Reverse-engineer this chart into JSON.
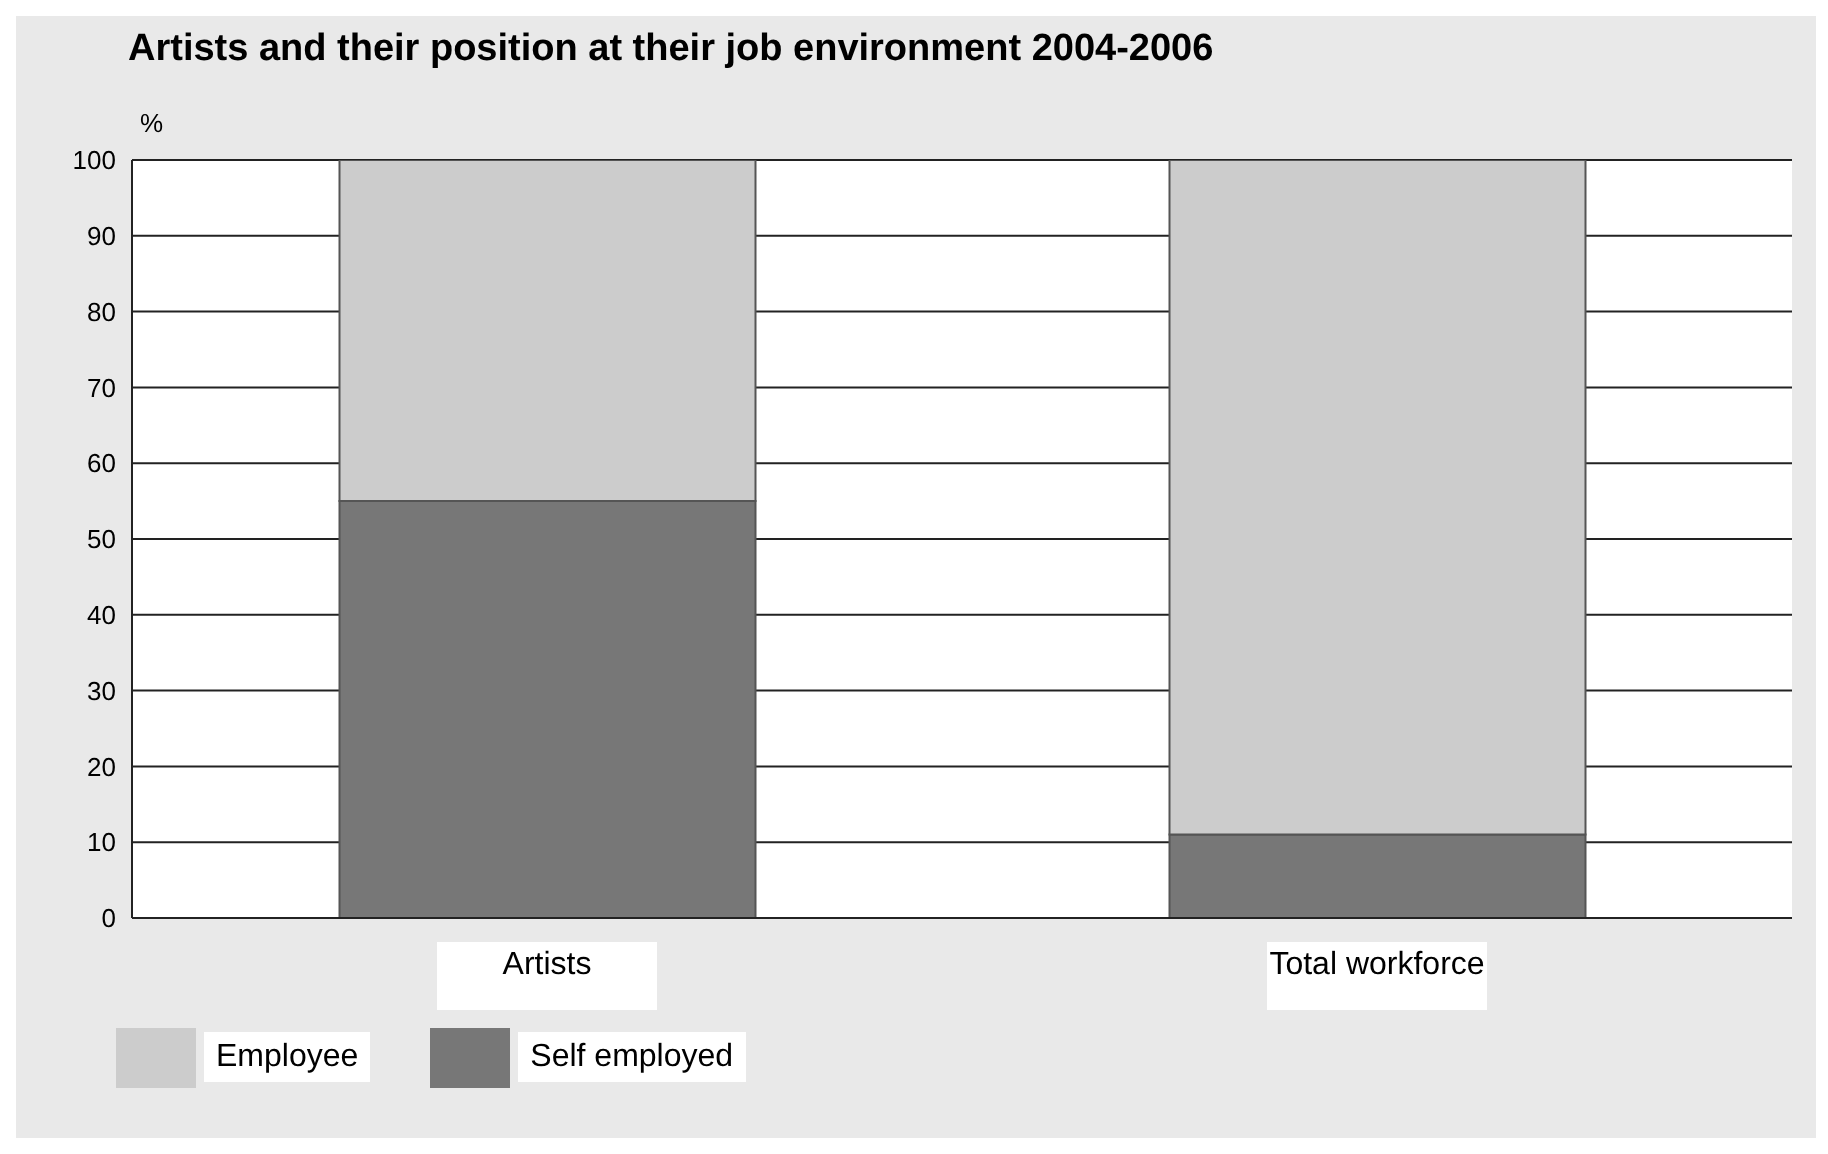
{
  "chart_data": {
    "type": "bar",
    "title": "Artists and their position at their job environment 2004-2006",
    "ylabel": "%",
    "categories": [
      "Artists",
      "Total workforce"
    ],
    "stacked": true,
    "series": [
      {
        "name": "Self employed",
        "color": "#777777",
        "values": [
          55,
          11
        ]
      },
      {
        "name": "Employee",
        "color": "#cccccc",
        "values": [
          45,
          89
        ]
      }
    ],
    "ylim": [
      0,
      100
    ],
    "yticks": [
      0,
      10,
      20,
      30,
      40,
      50,
      60,
      70,
      80,
      90,
      100
    ],
    "grid": "y",
    "legend": "bottom left"
  }
}
